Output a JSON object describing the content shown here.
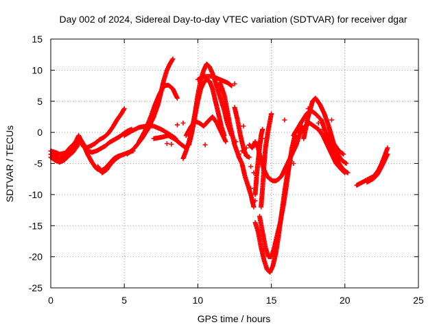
{
  "chart_data": {
    "type": "scatter",
    "title": "Day 002 of 2024, Sidereal Day-to-day VTEC variation (SDTVAR) for receiver dgar",
    "xlabel": "GPS time / hours",
    "ylabel": "SDTVAR / TECUs",
    "xlim": [
      0,
      25
    ],
    "ylim": [
      -25,
      15
    ],
    "xticks": [
      0,
      5,
      10,
      15,
      20,
      25
    ],
    "yticks": [
      -25,
      -20,
      -15,
      -10,
      -5,
      0,
      5,
      10,
      15
    ],
    "grid": true,
    "marker": "plus",
    "color": "#ff0000",
    "tracks": [
      [
        [
          0.0,
          -3.5
        ],
        [
          0.3,
          -3.8
        ],
        [
          0.6,
          -4.3
        ],
        [
          0.9,
          -3.9
        ],
        [
          1.2,
          -3.2
        ],
        [
          1.5,
          -2.5
        ],
        [
          1.7,
          -1.5
        ],
        [
          1.9,
          -0.5
        ],
        [
          2.1,
          -1.5
        ],
        [
          2.4,
          -2.5
        ],
        [
          2.7,
          -2.2
        ],
        [
          3.0,
          -1.8
        ],
        [
          3.3,
          -1.2
        ],
        [
          3.6,
          -0.8
        ],
        [
          3.9,
          -0.2
        ],
        [
          4.2,
          0.8
        ],
        [
          4.5,
          2.0
        ],
        [
          4.8,
          3.0
        ],
        [
          5.0,
          3.8
        ]
      ],
      [
        [
          0.0,
          -4.0
        ],
        [
          0.3,
          -4.5
        ],
        [
          0.6,
          -4.8
        ],
        [
          0.9,
          -4.5
        ],
        [
          1.2,
          -3.8
        ],
        [
          1.5,
          -3.2
        ],
        [
          1.8,
          -2.2
        ],
        [
          2.0,
          -1.0
        ],
        [
          2.2,
          -1.8
        ],
        [
          2.5,
          -3.5
        ],
        [
          2.8,
          -4.8
        ],
        [
          3.1,
          -5.8
        ],
        [
          3.4,
          -6.2
        ],
        [
          3.7,
          -5.8
        ],
        [
          4.0,
          -5.0
        ],
        [
          4.3,
          -4.2
        ],
        [
          4.6,
          -3.8
        ],
        [
          5.0,
          -3.5
        ]
      ],
      [
        [
          0.0,
          -3.0
        ],
        [
          0.3,
          -3.2
        ],
        [
          0.6,
          -3.5
        ],
        [
          1.0,
          -3.3
        ],
        [
          1.3,
          -2.5
        ],
        [
          1.6,
          -1.8
        ],
        [
          1.9,
          -0.8
        ],
        [
          2.2,
          -2.2
        ],
        [
          2.5,
          -3.0
        ],
        [
          2.8,
          -3.2
        ],
        [
          3.1,
          -3.0
        ],
        [
          3.4,
          -2.6
        ],
        [
          3.7,
          -2.2
        ],
        [
          4.0,
          -1.6
        ],
        [
          4.3,
          -1.2
        ],
        [
          4.6,
          -0.8
        ],
        [
          4.9,
          -0.3
        ],
        [
          5.2,
          0.2
        ],
        [
          5.5,
          0.5
        ]
      ],
      [
        [
          3.2,
          -5.5
        ],
        [
          3.5,
          -6.5
        ],
        [
          3.8,
          -6.0
        ],
        [
          4.1,
          -5.0
        ],
        [
          4.4,
          -4.3
        ],
        [
          4.7,
          -3.8
        ],
        [
          5.0,
          -3.5
        ],
        [
          5.3,
          -3.2
        ],
        [
          5.6,
          -3.0
        ]
      ],
      [
        [
          5.0,
          -0.5
        ],
        [
          5.5,
          0.2
        ],
        [
          6.0,
          0.8
        ],
        [
          6.5,
          1.0
        ],
        [
          7.0,
          1.0
        ],
        [
          7.5,
          0.5
        ],
        [
          8.0,
          -0.2
        ],
        [
          8.5,
          -1.0
        ]
      ],
      [
        [
          5.2,
          -3.5
        ],
        [
          5.7,
          -2.5
        ],
        [
          6.2,
          -1.0
        ],
        [
          6.6,
          0.5
        ],
        [
          7.0,
          2.5
        ],
        [
          7.3,
          4.5
        ],
        [
          7.5,
          6.5
        ],
        [
          7.7,
          8.5
        ],
        [
          7.9,
          10.0
        ],
        [
          8.1,
          11.0
        ],
        [
          8.3,
          11.8
        ]
      ],
      [
        [
          6.0,
          -1.5
        ],
        [
          6.4,
          0.2
        ],
        [
          6.8,
          2.5
        ],
        [
          7.1,
          4.5
        ],
        [
          7.4,
          6.2
        ],
        [
          7.7,
          7.5
        ],
        [
          8.0,
          7.6
        ],
        [
          8.3,
          7.0
        ],
        [
          8.6,
          5.5
        ]
      ],
      [
        [
          7.0,
          -1.0
        ],
        [
          7.5,
          -0.8
        ],
        [
          8.0,
          -0.5
        ],
        [
          8.5,
          -1.2
        ],
        [
          8.9,
          -2.0
        ],
        [
          9.2,
          -2.5
        ]
      ],
      [
        [
          9.0,
          -4.2
        ],
        [
          9.2,
          -3.0
        ],
        [
          9.4,
          -1.5
        ],
        [
          9.6,
          0.5
        ],
        [
          9.8,
          3.0
        ],
        [
          10.0,
          6.0
        ],
        [
          10.2,
          8.5
        ],
        [
          10.4,
          10.0
        ],
        [
          10.6,
          11.0
        ],
        [
          10.8,
          10.5
        ],
        [
          11.0,
          9.5
        ],
        [
          11.2,
          8.0
        ],
        [
          11.4,
          6.5
        ],
        [
          11.6,
          5.0
        ],
        [
          11.8,
          3.5
        ],
        [
          12.0,
          1.5
        ],
        [
          12.3,
          -0.5
        ]
      ],
      [
        [
          9.4,
          -2.0
        ],
        [
          9.6,
          0.0
        ],
        [
          9.8,
          2.5
        ],
        [
          10.0,
          5.0
        ],
        [
          10.2,
          7.0
        ],
        [
          10.4,
          8.0
        ],
        [
          10.6,
          8.5
        ],
        [
          10.8,
          8.2
        ],
        [
          11.0,
          7.0
        ],
        [
          11.2,
          5.0
        ],
        [
          11.4,
          3.0
        ],
        [
          11.6,
          1.0
        ],
        [
          11.8,
          -0.5
        ]
      ],
      [
        [
          9.2,
          -0.5
        ],
        [
          9.5,
          0.8
        ],
        [
          9.8,
          1.8
        ],
        [
          10.1,
          1.5
        ],
        [
          10.4,
          1.0
        ],
        [
          10.7,
          1.8
        ],
        [
          11.0,
          2.5
        ],
        [
          11.3,
          1.5
        ],
        [
          11.6,
          0.0
        ],
        [
          11.9,
          -1.5
        ]
      ],
      [
        [
          10.0,
          8.5
        ],
        [
          10.5,
          9.0
        ],
        [
          11.0,
          9.0
        ],
        [
          11.5,
          8.5
        ],
        [
          12.0,
          8.0
        ],
        [
          12.3,
          7.5
        ]
      ],
      [
        [
          11.5,
          8.0
        ],
        [
          11.8,
          6.0
        ],
        [
          12.0,
          3.5
        ],
        [
          12.2,
          1.0
        ],
        [
          12.5,
          -2.0
        ],
        [
          12.8,
          -4.0
        ],
        [
          13.0,
          -5.0
        ],
        [
          13.2,
          -7.0
        ],
        [
          13.4,
          -8.5
        ],
        [
          13.6,
          -10.0
        ],
        [
          13.8,
          -12.0
        ]
      ],
      [
        [
          12.5,
          4.0
        ],
        [
          12.7,
          2.0
        ],
        [
          12.9,
          -0.5
        ],
        [
          13.1,
          -2.5
        ],
        [
          13.3,
          -3.8
        ],
        [
          13.5,
          -4.0
        ]
      ],
      [
        [
          13.5,
          -2.0
        ],
        [
          13.7,
          -2.5
        ],
        [
          13.9,
          -1.5
        ],
        [
          14.1,
          -2.5
        ],
        [
          14.3,
          -4.5
        ],
        [
          14.5,
          -6.0
        ],
        [
          14.7,
          -7.0
        ],
        [
          14.9,
          -7.5
        ],
        [
          15.1,
          -7.8
        ],
        [
          15.3,
          -7.8
        ],
        [
          15.5,
          -7.5
        ],
        [
          15.7,
          -7.0
        ],
        [
          15.9,
          -6.0
        ],
        [
          16.1,
          -5.0
        ],
        [
          16.3,
          -4.0
        ],
        [
          16.5,
          -3.0
        ],
        [
          16.7,
          -2.0
        ],
        [
          16.9,
          -0.5
        ],
        [
          17.1,
          1.0
        ]
      ],
      [
        [
          13.9,
          -10.0
        ],
        [
          14.0,
          -7.0
        ],
        [
          14.1,
          -4.5
        ],
        [
          14.2,
          -2.5
        ],
        [
          14.3,
          -0.5
        ],
        [
          14.4,
          0.5
        ]
      ],
      [
        [
          13.9,
          -14.5
        ],
        [
          14.1,
          -16.0
        ],
        [
          14.3,
          -18.5
        ],
        [
          14.5,
          -20.5
        ],
        [
          14.7,
          -22.0
        ],
        [
          14.9,
          -22.5
        ],
        [
          15.1,
          -21.5
        ],
        [
          15.3,
          -19.5
        ],
        [
          15.5,
          -16.5
        ],
        [
          15.7,
          -13.0
        ],
        [
          15.9,
          -9.5
        ],
        [
          16.1,
          -6.5
        ],
        [
          16.3,
          -4.5
        ]
      ],
      [
        [
          14.2,
          -13.5
        ],
        [
          14.4,
          -16.0
        ],
        [
          14.6,
          -18.5
        ],
        [
          14.8,
          -20.0
        ],
        [
          15.0,
          -20.0
        ],
        [
          15.2,
          -18.5
        ],
        [
          15.4,
          -16.5
        ],
        [
          15.6,
          -14.5
        ],
        [
          15.8,
          -12.0
        ],
        [
          16.0,
          -9.0
        ],
        [
          16.2,
          -5.5
        ],
        [
          16.4,
          -2.5
        ],
        [
          16.6,
          -0.5
        ],
        [
          16.8,
          -1.0
        ]
      ],
      [
        [
          14.3,
          -12.0
        ],
        [
          14.4,
          -9.0
        ],
        [
          14.5,
          -5.5
        ],
        [
          14.6,
          -2.5
        ],
        [
          14.8,
          0.5
        ],
        [
          15.0,
          3.0
        ]
      ],
      [
        [
          16.5,
          -0.5
        ],
        [
          17.0,
          1.5
        ],
        [
          17.4,
          3.0
        ],
        [
          17.7,
          3.5
        ],
        [
          18.0,
          3.0
        ],
        [
          18.4,
          2.0
        ],
        [
          18.7,
          0.0
        ],
        [
          19.0,
          -2.0
        ],
        [
          19.3,
          -3.5
        ],
        [
          19.6,
          -5.0
        ],
        [
          19.9,
          -6.0
        ],
        [
          20.2,
          -6.5
        ]
      ],
      [
        [
          17.2,
          -1.0
        ],
        [
          17.5,
          2.5
        ],
        [
          17.8,
          5.0
        ],
        [
          18.0,
          5.5
        ],
        [
          18.3,
          4.5
        ],
        [
          18.6,
          3.0
        ],
        [
          18.9,
          1.0
        ],
        [
          19.2,
          -1.5
        ],
        [
          19.5,
          -3.5
        ],
        [
          19.8,
          -4.5
        ],
        [
          20.1,
          -5.0
        ]
      ],
      [
        [
          17.0,
          0.0
        ],
        [
          17.3,
          1.0
        ],
        [
          17.6,
          1.5
        ],
        [
          17.9,
          1.0
        ],
        [
          18.2,
          0.5
        ],
        [
          18.5,
          -0.5
        ],
        [
          18.8,
          -2.0
        ],
        [
          19.1,
          -3.5
        ],
        [
          19.4,
          -5.0
        ],
        [
          19.7,
          -5.8
        ],
        [
          20.0,
          -6.5
        ]
      ],
      [
        [
          19.0,
          -1.0
        ],
        [
          19.3,
          -2.0
        ],
        [
          19.6,
          -3.0
        ],
        [
          19.9,
          -3.5
        ]
      ],
      [
        [
          20.8,
          -8.5
        ],
        [
          21.2,
          -8.0
        ],
        [
          21.6,
          -7.5
        ],
        [
          22.0,
          -7.0
        ],
        [
          22.3,
          -6.0
        ],
        [
          22.5,
          -5.0
        ],
        [
          22.7,
          -3.8
        ],
        [
          22.9,
          -2.5
        ]
      ],
      [
        [
          21.5,
          -8.0
        ],
        [
          21.9,
          -7.5
        ],
        [
          22.2,
          -6.8
        ],
        [
          22.5,
          -5.5
        ],
        [
          22.7,
          -4.5
        ],
        [
          22.9,
          -3.5
        ]
      ]
    ],
    "scatter_points": [
      [
        7.9,
        -1.8
      ],
      [
        8.2,
        -1.9
      ],
      [
        8.6,
        1.2
      ],
      [
        9.0,
        1.5
      ],
      [
        10.5,
        -2.0
      ],
      [
        11.5,
        6.8
      ],
      [
        12.5,
        7.8
      ],
      [
        12.6,
        -1.5
      ],
      [
        12.8,
        -3.5
      ],
      [
        13.0,
        -3.0
      ],
      [
        13.1,
        1.0
      ],
      [
        13.3,
        -2.5
      ],
      [
        13.6,
        -5.5
      ],
      [
        13.8,
        -6.5
      ],
      [
        13.6,
        -9.0
      ],
      [
        13.9,
        -11.0
      ],
      [
        14.4,
        -1.0
      ],
      [
        14.6,
        -2.2
      ],
      [
        15.9,
        2.0
      ],
      [
        16.5,
        -5.0
      ],
      [
        16.8,
        0.0
      ],
      [
        17.0,
        1.5
      ],
      [
        17.2,
        2.2
      ],
      [
        17.5,
        3.8
      ],
      [
        18.2,
        1.5
      ],
      [
        18.5,
        0.5
      ],
      [
        19.1,
        2.0
      ]
    ]
  }
}
